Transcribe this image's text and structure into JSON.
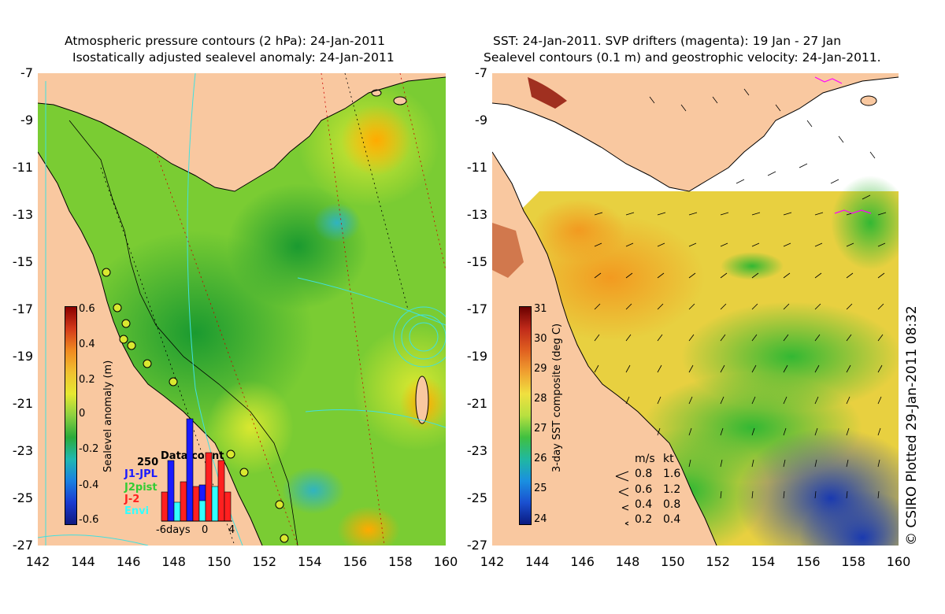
{
  "left_panel": {
    "title_line1": "Atmospheric pressure contours (2 hPa): 24-Jan-2011",
    "title_line2": "Isostatically adjusted sealevel anomaly: 24-Jan-2011",
    "colorbar_label": "Sealevel anomaly (m)",
    "colorbar_ticks": [
      "0.6",
      "0.4",
      "0.2",
      "0",
      "-0.2",
      "-0.4",
      "-0.6"
    ],
    "data_count": {
      "title": "Data count",
      "ymax_label": "250",
      "xticks": [
        "-6days",
        "0",
        "4"
      ],
      "missions": [
        {
          "name": "J1-JPL",
          "color": "#1a1aff"
        },
        {
          "name": "J2pist",
          "color": "#33cc33"
        },
        {
          "name": "J-2",
          "color": "#ff2020"
        },
        {
          "name": "Envi",
          "color": "#33ffff"
        }
      ]
    }
  },
  "right_panel": {
    "title_line1": "SST: 24-Jan-2011. SVP drifters (magenta): 19 Jan - 27 Jan",
    "title_line2": "Sealevel contours (0.1 m) and geostrophic velocity: 24-Jan-2011.",
    "colorbar_label": "3-day SST composite (deg C)",
    "colorbar_ticks": [
      "31",
      "30",
      "29",
      "28",
      "27",
      "26",
      "25",
      "24"
    ],
    "speed_legend": {
      "header_ms": "m/s",
      "header_kt": "kt",
      "rows": [
        {
          "ms": "0.8",
          "kt": "1.6"
        },
        {
          "ms": "0.6",
          "kt": "1.2"
        },
        {
          "ms": "0.4",
          "kt": "0.8"
        },
        {
          "ms": "0.2",
          "kt": "0.4"
        }
      ]
    }
  },
  "axes": {
    "y_ticks": [
      "-7",
      "-9",
      "-11",
      "-13",
      "-15",
      "-17",
      "-19",
      "-21",
      "-23",
      "-25",
      "-27"
    ],
    "x_ticks": [
      "142",
      "144",
      "146",
      "148",
      "150",
      "152",
      "154",
      "156",
      "158",
      "160"
    ],
    "lat_range": [
      -27,
      -7
    ],
    "lon_range": [
      142,
      160
    ]
  },
  "credit": "© CSIRO Plotted 29-Jan-2011 08:32",
  "colors": {
    "land": "#f9c8a0",
    "sla_mid": "#7acc33",
    "sst_mid": "#e8d040",
    "contour": "#40e0e0"
  }
}
